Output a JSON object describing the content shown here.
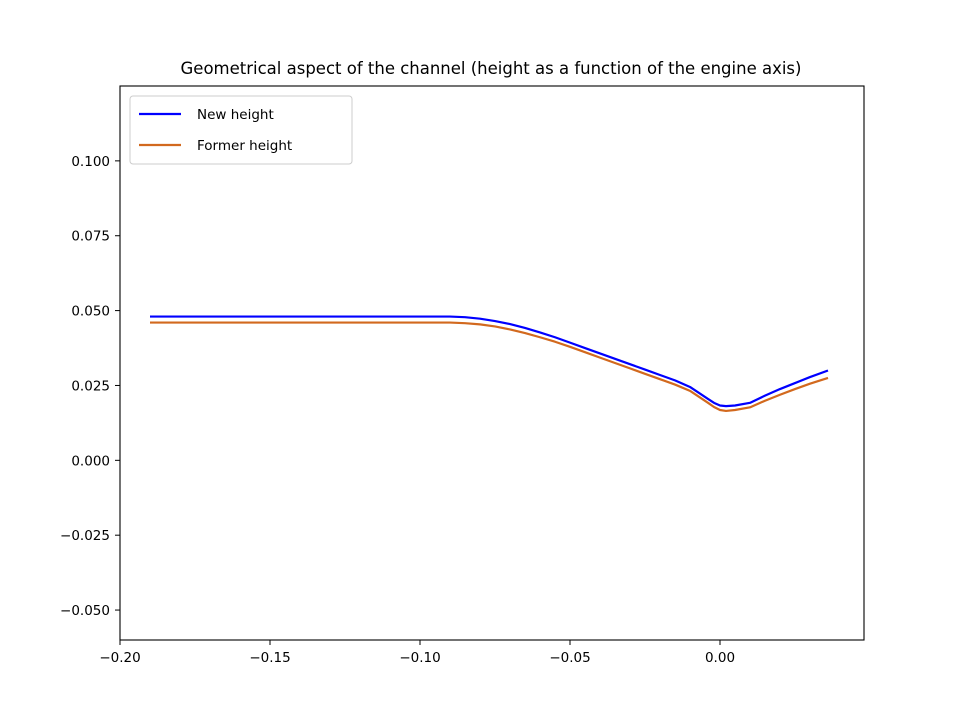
{
  "chart_data": {
    "type": "line",
    "title": "Geometrical aspect of the channel (height as a function of the engine axis)",
    "xlabel": "",
    "ylabel": "",
    "xlim": [
      -0.2,
      0.048
    ],
    "ylim": [
      -0.06,
      0.125
    ],
    "xticks": [
      -0.2,
      -0.15,
      -0.1,
      -0.05,
      0.0
    ],
    "xtick_labels": [
      "−0.20",
      "−0.15",
      "−0.10",
      "−0.05",
      "0.00"
    ],
    "yticks": [
      -0.05,
      -0.025,
      0.0,
      0.025,
      0.05,
      0.075,
      0.1
    ],
    "ytick_labels": [
      "−0.050",
      "−0.025",
      "0.000",
      "0.025",
      "0.050",
      "0.075",
      "0.100"
    ],
    "grid": false,
    "legend_position": "upper-left",
    "series": [
      {
        "name": "New height",
        "color": "#0000ff",
        "x": [
          -0.19,
          -0.17,
          -0.15,
          -0.13,
          -0.11,
          -0.09,
          -0.085,
          -0.08,
          -0.075,
          -0.07,
          -0.065,
          -0.06,
          -0.055,
          -0.05,
          -0.045,
          -0.04,
          -0.035,
          -0.03,
          -0.025,
          -0.02,
          -0.015,
          -0.01,
          -0.007,
          -0.004,
          -0.002,
          0.0,
          0.002,
          0.005,
          0.01,
          0.015,
          0.02,
          0.025,
          0.03,
          0.036
        ],
        "y": [
          0.048,
          0.048,
          0.048,
          0.048,
          0.048,
          0.048,
          0.0478,
          0.0473,
          0.0465,
          0.0455,
          0.0442,
          0.0427,
          0.0411,
          0.0393,
          0.0375,
          0.0357,
          0.0339,
          0.0321,
          0.0303,
          0.0285,
          0.0267,
          0.0245,
          0.0225,
          0.0205,
          0.0192,
          0.0183,
          0.0181,
          0.0183,
          0.0192,
          0.0216,
          0.0238,
          0.0258,
          0.0278,
          0.03
        ]
      },
      {
        "name": "Former height",
        "color": "#d2691e",
        "x": [
          -0.19,
          -0.17,
          -0.15,
          -0.13,
          -0.11,
          -0.09,
          -0.085,
          -0.08,
          -0.075,
          -0.07,
          -0.065,
          -0.06,
          -0.055,
          -0.05,
          -0.045,
          -0.04,
          -0.035,
          -0.03,
          -0.025,
          -0.02,
          -0.015,
          -0.01,
          -0.007,
          -0.004,
          -0.002,
          0.0,
          0.002,
          0.005,
          0.01,
          0.015,
          0.02,
          0.025,
          0.03,
          0.036
        ],
        "y": [
          0.046,
          0.046,
          0.046,
          0.046,
          0.046,
          0.046,
          0.0458,
          0.0454,
          0.0447,
          0.0437,
          0.0425,
          0.0411,
          0.0396,
          0.0379,
          0.0361,
          0.0343,
          0.0325,
          0.0307,
          0.0289,
          0.0271,
          0.0253,
          0.0232,
          0.0212,
          0.0192,
          0.0178,
          0.0168,
          0.0165,
          0.0168,
          0.0177,
          0.0199,
          0.0219,
          0.0238,
          0.0256,
          0.0275
        ]
      }
    ]
  }
}
